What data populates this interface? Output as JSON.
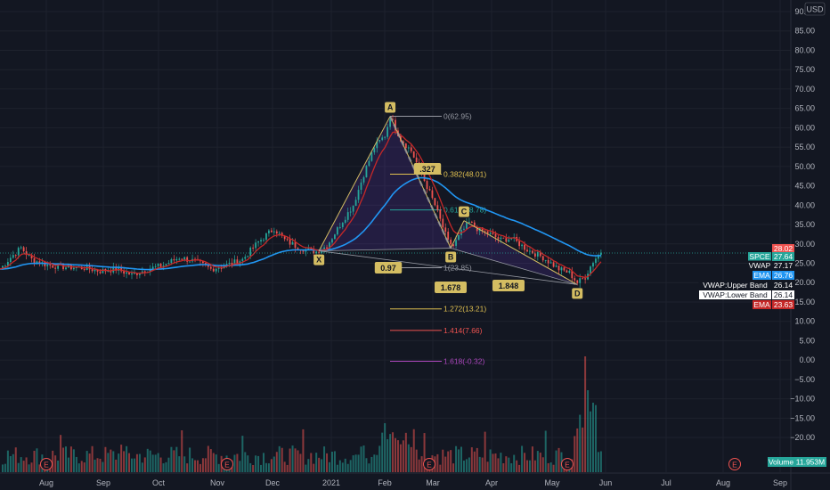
{
  "chart_data": {
    "type": "candlestick",
    "currency_badge": "USD",
    "price_axis": {
      "ticks": [
        "90.00",
        "85.00",
        "80.00",
        "75.00",
        "70.00",
        "65.00",
        "60.00",
        "55.00",
        "50.00",
        "45.00",
        "40.00",
        "35.00",
        "30.00",
        "25.00",
        "20.00",
        "15.00",
        "10.00",
        "5.00",
        "0.00",
        "−5.00",
        "−10.00",
        "−15.00",
        "−20.00"
      ],
      "ylim": [
        -25,
        91
      ]
    },
    "time_axis": {
      "ticks": [
        "Aug",
        "Sep",
        "Oct",
        "Nov",
        "Dec",
        "2021",
        "Feb",
        "Mar",
        "Apr",
        "May",
        "Jun",
        "Jul",
        "Aug",
        "Sep"
      ]
    },
    "price_path": [
      {
        "t": 0,
        "p": 23.5
      },
      {
        "t": 4,
        "p": 26.5
      },
      {
        "t": 8,
        "p": 29.0
      },
      {
        "t": 12,
        "p": 26.0
      },
      {
        "t": 18,
        "p": 24.5
      },
      {
        "t": 25,
        "p": 24.0
      },
      {
        "t": 32,
        "p": 23.8
      },
      {
        "t": 38,
        "p": 23.0
      },
      {
        "t": 44,
        "p": 23.5
      },
      {
        "t": 50,
        "p": 22.0
      },
      {
        "t": 56,
        "p": 23.5
      },
      {
        "t": 62,
        "p": 24.5
      },
      {
        "t": 68,
        "p": 26.5
      },
      {
        "t": 74,
        "p": 25.5
      },
      {
        "t": 80,
        "p": 23.5
      },
      {
        "t": 86,
        "p": 24.5
      },
      {
        "t": 92,
        "p": 26.0
      },
      {
        "t": 98,
        "p": 30.5
      },
      {
        "t": 104,
        "p": 34.0
      },
      {
        "t": 108,
        "p": 31.0
      },
      {
        "t": 112,
        "p": 29.5
      },
      {
        "t": 116,
        "p": 28.5
      },
      {
        "t": 120,
        "p": 28.0
      },
      {
        "t": 124,
        "p": 29.5
      },
      {
        "t": 130,
        "p": 36.0
      },
      {
        "t": 134,
        "p": 40.0
      },
      {
        "t": 138,
        "p": 48.0
      },
      {
        "t": 142,
        "p": 55.0
      },
      {
        "t": 146,
        "p": 58.0
      },
      {
        "t": 148,
        "p": 62.9
      },
      {
        "t": 152,
        "p": 57.0
      },
      {
        "t": 156,
        "p": 54.0
      },
      {
        "t": 160,
        "p": 48.0
      },
      {
        "t": 165,
        "p": 40.0
      },
      {
        "t": 170,
        "p": 30.5
      },
      {
        "t": 172,
        "p": 29.5
      },
      {
        "t": 175,
        "p": 33.0
      },
      {
        "t": 178,
        "p": 35.5
      },
      {
        "t": 182,
        "p": 33.5
      },
      {
        "t": 186,
        "p": 32.5
      },
      {
        "t": 190,
        "p": 31.0
      },
      {
        "t": 194,
        "p": 31.5
      },
      {
        "t": 200,
        "p": 28.5
      },
      {
        "t": 206,
        "p": 26.5
      },
      {
        "t": 212,
        "p": 23.5
      },
      {
        "t": 216,
        "p": 22.5
      },
      {
        "t": 219,
        "p": 20.0
      },
      {
        "t": 222,
        "p": 21.5
      },
      {
        "t": 225,
        "p": 25.5
      },
      {
        "t": 228,
        "p": 28.0
      }
    ],
    "price_labels": [
      {
        "name": "",
        "value": "28.02",
        "y": 28.02,
        "color": "#ef5350"
      },
      {
        "name": "SPCE",
        "value": "27.64",
        "y": 27.64,
        "color": "#26a69a"
      },
      {
        "name": "VWAP",
        "value": "27.17",
        "y": 27.17,
        "color": "#131722"
      },
      {
        "name": "EMA",
        "value": "26.76",
        "y": 26.76,
        "color": "#2196f3"
      },
      {
        "name": "VWAP:Upper Band",
        "value": "26.14",
        "y": 26.14,
        "color": "#131722"
      },
      {
        "name": "VWAP:Lower Band",
        "value": "26.14",
        "y": 26.14,
        "color": "#ffffff"
      },
      {
        "name": "EMA",
        "value": "23.63",
        "y": 23.63,
        "color": "#c62828"
      }
    ],
    "harmonic_pattern": {
      "points": [
        {
          "label": "X",
          "t": 121,
          "p": 28.2
        },
        {
          "label": "A",
          "t": 148,
          "p": 62.95
        },
        {
          "label": "B",
          "t": 171,
          "p": 28.9
        },
        {
          "label": "C",
          "t": 176,
          "p": 36.0
        },
        {
          "label": "D",
          "t": 219,
          "p": 19.5
        }
      ],
      "ratios": [
        "0.97",
        ".327",
        "1.678",
        "1.848"
      ]
    },
    "fib_levels": [
      {
        "label": "0(62.95)",
        "p": 62.95,
        "color": "#9598a1"
      },
      {
        "label": "0.382(48.01)",
        "p": 48.01,
        "color": "#e0c050"
      },
      {
        "label": "0.618(38.78)",
        "p": 38.78,
        "color": "#26a69a"
      },
      {
        "label": "1(23.85)",
        "p": 23.85,
        "color": "#9598a1"
      },
      {
        "label": "1.272(13.21)",
        "p": 13.21,
        "color": "#e0c050"
      },
      {
        "label": "1.414(7.66)",
        "p": 7.66,
        "color": "#ef5350"
      },
      {
        "label": "1.618(-0.32)",
        "p": -0.32,
        "color": "#ab47bc"
      }
    ],
    "volume_label": {
      "name": "Volume",
      "value": "11.953M"
    },
    "earnings_marker": "E"
  }
}
